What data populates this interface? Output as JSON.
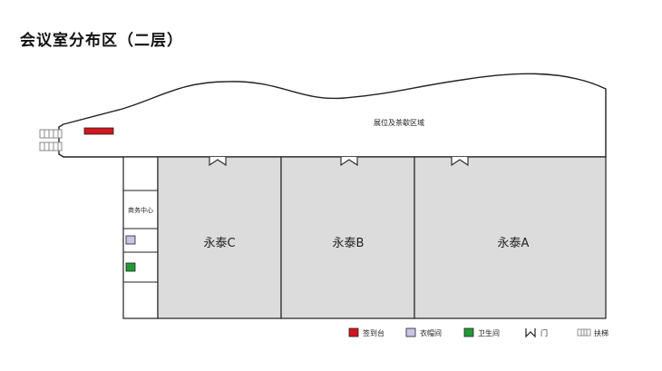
{
  "page": {
    "title": "会议室分布区（二层）"
  },
  "areas": {
    "lobby": "展位及茶歇区域",
    "business_center": "商务中心",
    "rooms": [
      "永泰C",
      "永泰B",
      "永泰A"
    ]
  },
  "legend": [
    {
      "key": "reception",
      "label": "签到台",
      "color": "#d0161e"
    },
    {
      "key": "cloakroom",
      "label": "衣帽间",
      "color": "#c9c3e6"
    },
    {
      "key": "restroom",
      "label": "卫生间",
      "color": "#1f9a35"
    },
    {
      "key": "door",
      "label": "门"
    },
    {
      "key": "escalator",
      "label": "扶梯"
    }
  ],
  "colors": {
    "room_fill": "#dcdcdc",
    "outline": "#222222"
  }
}
